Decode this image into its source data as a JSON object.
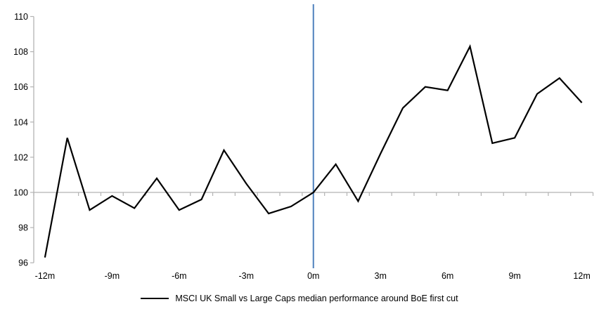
{
  "legend": {
    "label": "MSCI UK Small vs Large Caps median performance around BoE first cut",
    "swatch_color": "#000000"
  },
  "chart_data": {
    "type": "line",
    "title": "",
    "xlabel": "",
    "ylabel": "",
    "x": [
      -12,
      -11,
      -10,
      -9,
      -8,
      -7,
      -6,
      -5,
      -4,
      -3,
      -2,
      -1,
      0,
      1,
      2,
      3,
      4,
      5,
      6,
      7,
      8,
      9,
      10,
      11,
      12
    ],
    "series": [
      {
        "name": "MSCI UK Small vs Large Caps median performance around BoE first cut",
        "color": "#000000",
        "values": [
          96.3,
          103.1,
          99.0,
          99.8,
          99.1,
          100.8,
          99.0,
          99.6,
          102.4,
          100.5,
          98.8,
          99.2,
          100.0,
          101.6,
          99.5,
          102.2,
          104.8,
          106.0,
          105.8,
          108.3,
          102.8,
          103.1,
          105.6,
          106.5,
          105.1
        ]
      }
    ],
    "ylim": [
      96,
      110
    ],
    "y_ticks": [
      110,
      108,
      106,
      104,
      102,
      100,
      98,
      96
    ],
    "x_tick_labels": [
      "-12m",
      "-9m",
      "-6m",
      "-3m",
      "0m",
      "3m",
      "6m",
      "9m",
      "12m"
    ],
    "x_tick_positions": [
      -12,
      -9,
      -6,
      -3,
      0,
      3,
      6,
      9,
      12
    ],
    "baseline_value": 100,
    "event_line": {
      "x": 0,
      "color": "#4f81bd"
    },
    "axis_color": "#b3b3b3",
    "grid": "baseline-only",
    "legend_position": "bottom-center"
  }
}
